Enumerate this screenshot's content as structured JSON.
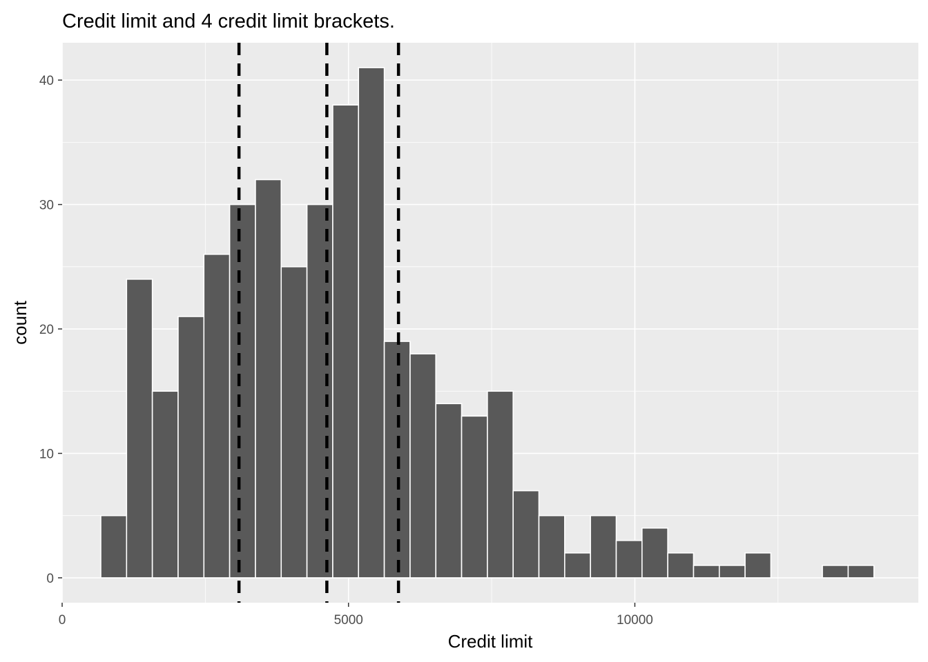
{
  "chart_data": {
    "type": "bar",
    "subtype": "histogram",
    "title": "Credit limit and 4 credit limit brackets.",
    "xlabel": "Credit limit",
    "ylabel": "count",
    "xlim": [
      0,
      14950
    ],
    "ylim": [
      -2,
      43
    ],
    "x_ticks": [
      0,
      5000,
      10000
    ],
    "y_ticks": [
      0,
      10,
      20,
      30,
      40
    ],
    "x_tick_labels": [
      "0",
      "5000",
      "10000"
    ],
    "y_tick_labels": [
      "0",
      "10",
      "20",
      "30",
      "40"
    ],
    "bin_width": 450,
    "bin_start": 675,
    "counts": [
      5,
      24,
      15,
      21,
      26,
      30,
      32,
      25,
      30,
      38,
      41,
      19,
      18,
      14,
      13,
      15,
      7,
      5,
      2,
      5,
      3,
      4,
      2,
      1,
      1,
      2,
      0,
      0,
      1,
      1
    ],
    "bracket_cutoffs": [
      3088,
      4622,
      5873
    ],
    "grid": true,
    "colors": {
      "panel": "#ebebeb",
      "grid": "#ffffff",
      "bar_fill": "#595959",
      "bar_outline": "#ffffff",
      "cutoff_line": "#000000"
    }
  }
}
